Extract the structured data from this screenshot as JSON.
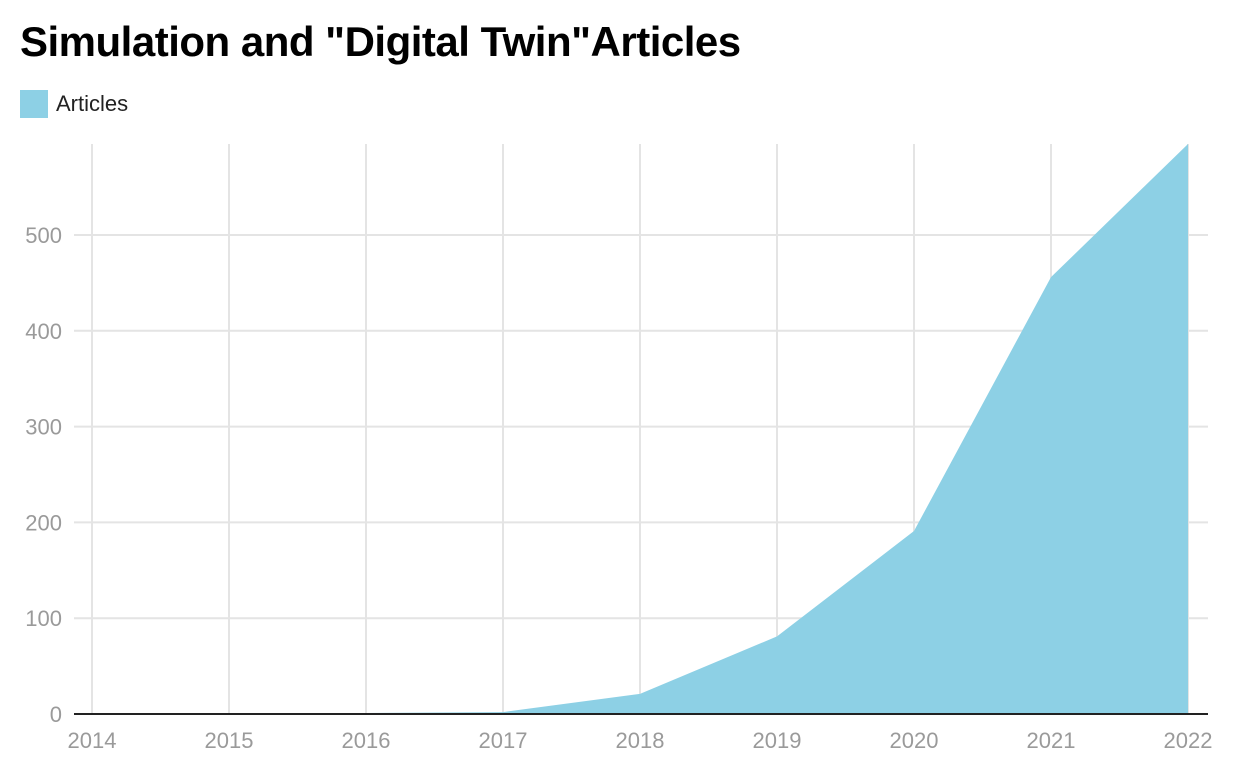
{
  "chart_data": {
    "type": "area",
    "title": "Simulation and \"Digital Twin\"Articles",
    "xlabel": "",
    "ylabel": "",
    "legend_position": "top-left",
    "grid": true,
    "series": [
      {
        "name": "Articles",
        "color": "#8dd0e5",
        "x": [
          "2014",
          "2015",
          "2016",
          "2017",
          "2018",
          "2019",
          "2020",
          "2021",
          "2022"
        ],
        "values": [
          0,
          0,
          1,
          2,
          21,
          81,
          191,
          456,
          595
        ]
      }
    ],
    "categories": [
      "2014",
      "2015",
      "2016",
      "2017",
      "2018",
      "2019",
      "2020",
      "2021",
      "2022"
    ],
    "y_ticks": [
      "0",
      "100",
      "200",
      "300",
      "400",
      "500"
    ],
    "ylim": [
      0,
      595
    ]
  },
  "colors": {
    "area": "#8dd0e5",
    "grid": "#e4e4e4",
    "baseline": "#222222",
    "tick_text": "#9a9a9a"
  }
}
